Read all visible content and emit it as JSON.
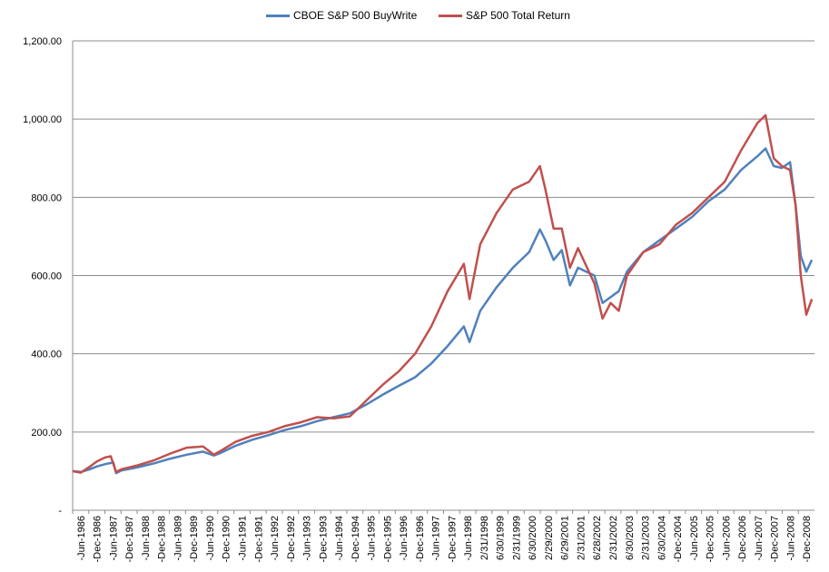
{
  "chart_data": {
    "type": "line",
    "title": "",
    "xlabel": "",
    "ylabel": "",
    "ylim": [
      0,
      1200
    ],
    "grid": true,
    "legend_position": "top",
    "y_ticks": [
      "-",
      "200.00",
      "400.00",
      "600.00",
      "800.00",
      "1,000.00",
      "1,200.00"
    ],
    "y_tick_values": [
      0,
      200,
      400,
      600,
      800,
      1000,
      1200
    ],
    "x_tick_labels": [
      "-Jun-1986",
      "-Dec-1986",
      "-Jun-1987",
      "-Dec-1987",
      "-Jun-1988",
      "-Dec-1988",
      "-Jun-1989",
      "-Dec-1989",
      "-Jun-1990",
      "-Dec-1990",
      "-Jun-1991",
      "-Dec-1991",
      "-Jun-1992",
      "-Dec-1992",
      "-Jun-1993",
      "-Dec-1993",
      "-Jun-1994",
      "-Dec-1994",
      "-Jun-1995",
      "-Dec-1995",
      "-Jun-1996",
      "-Dec-1996",
      "-Jun-1997",
      "-Dec-1997",
      "-Jun-1998",
      "2/31/1998",
      "6/30/1999",
      "2/31/1999",
      "6/30/2000",
      "2/29/2000",
      "6/29/2001",
      "2/31/2001",
      "6/28/2002",
      "2/31/2002",
      "6/30/2003",
      "2/31/2003",
      "6/30/2004",
      "-Dec-2004",
      "-Jun-2005",
      "-Dec-2005",
      "-Jun-2006",
      "-Dec-2006",
      "-Jun-2007",
      "-Dec-2007",
      "-Jun-2008",
      "-Dec-2008"
    ],
    "x_start": 1986.5,
    "x_end": 2009.25,
    "series": [
      {
        "name": "CBOE S&P 500 BuyWrite",
        "color": "#4F81BD",
        "points": [
          [
            1986.5,
            100
          ],
          [
            1986.75,
            98
          ],
          [
            1987.0,
            104
          ],
          [
            1987.25,
            112
          ],
          [
            1987.5,
            118
          ],
          [
            1987.75,
            122
          ],
          [
            1987.83,
            95
          ],
          [
            1988.0,
            102
          ],
          [
            1988.5,
            110
          ],
          [
            1989.0,
            120
          ],
          [
            1989.5,
            132
          ],
          [
            1990.0,
            142
          ],
          [
            1990.5,
            150
          ],
          [
            1990.83,
            140
          ],
          [
            1991.0,
            145
          ],
          [
            1991.5,
            165
          ],
          [
            1992.0,
            180
          ],
          [
            1992.5,
            192
          ],
          [
            1993.0,
            205
          ],
          [
            1993.5,
            215
          ],
          [
            1994.0,
            228
          ],
          [
            1994.5,
            238
          ],
          [
            1995.0,
            248
          ],
          [
            1995.5,
            270
          ],
          [
            1996.0,
            295
          ],
          [
            1996.5,
            318
          ],
          [
            1997.0,
            340
          ],
          [
            1997.5,
            375
          ],
          [
            1998.0,
            420
          ],
          [
            1998.5,
            470
          ],
          [
            1998.67,
            430
          ],
          [
            1999.0,
            510
          ],
          [
            1999.5,
            570
          ],
          [
            2000.0,
            620
          ],
          [
            2000.5,
            660
          ],
          [
            2000.83,
            718
          ],
          [
            2001.0,
            690
          ],
          [
            2001.25,
            640
          ],
          [
            2001.5,
            665
          ],
          [
            2001.75,
            575
          ],
          [
            2002.0,
            620
          ],
          [
            2002.5,
            600
          ],
          [
            2002.75,
            530
          ],
          [
            2003.0,
            545
          ],
          [
            2003.25,
            560
          ],
          [
            2003.5,
            610
          ],
          [
            2004.0,
            660
          ],
          [
            2004.5,
            690
          ],
          [
            2005.0,
            720
          ],
          [
            2005.5,
            750
          ],
          [
            2006.0,
            790
          ],
          [
            2006.5,
            820
          ],
          [
            2007.0,
            870
          ],
          [
            2007.5,
            905
          ],
          [
            2007.75,
            925
          ],
          [
            2008.0,
            880
          ],
          [
            2008.25,
            875
          ],
          [
            2008.5,
            890
          ],
          [
            2008.67,
            780
          ],
          [
            2008.83,
            650
          ],
          [
            2009.0,
            610
          ],
          [
            2009.17,
            640
          ]
        ]
      },
      {
        "name": "S&P 500 Total  Return",
        "color": "#C0504D",
        "points": [
          [
            1986.5,
            100
          ],
          [
            1986.75,
            96
          ],
          [
            1987.0,
            110
          ],
          [
            1987.25,
            125
          ],
          [
            1987.5,
            135
          ],
          [
            1987.67,
            138
          ],
          [
            1987.83,
            98
          ],
          [
            1988.0,
            105
          ],
          [
            1988.5,
            115
          ],
          [
            1989.0,
            128
          ],
          [
            1989.5,
            145
          ],
          [
            1990.0,
            160
          ],
          [
            1990.5,
            163
          ],
          [
            1990.83,
            142
          ],
          [
            1991.0,
            150
          ],
          [
            1991.5,
            175
          ],
          [
            1992.0,
            190
          ],
          [
            1992.5,
            200
          ],
          [
            1993.0,
            215
          ],
          [
            1993.5,
            225
          ],
          [
            1994.0,
            238
          ],
          [
            1994.5,
            235
          ],
          [
            1995.0,
            240
          ],
          [
            1995.5,
            280
          ],
          [
            1996.0,
            320
          ],
          [
            1996.5,
            355
          ],
          [
            1997.0,
            400
          ],
          [
            1997.5,
            470
          ],
          [
            1998.0,
            560
          ],
          [
            1998.5,
            630
          ],
          [
            1998.67,
            540
          ],
          [
            1999.0,
            680
          ],
          [
            1999.5,
            760
          ],
          [
            2000.0,
            820
          ],
          [
            2000.5,
            840
          ],
          [
            2000.83,
            880
          ],
          [
            2001.0,
            820
          ],
          [
            2001.25,
            720
          ],
          [
            2001.5,
            720
          ],
          [
            2001.75,
            620
          ],
          [
            2002.0,
            670
          ],
          [
            2002.5,
            580
          ],
          [
            2002.75,
            490
          ],
          [
            2003.0,
            530
          ],
          [
            2003.25,
            510
          ],
          [
            2003.5,
            600
          ],
          [
            2004.0,
            660
          ],
          [
            2004.5,
            680
          ],
          [
            2005.0,
            730
          ],
          [
            2005.5,
            760
          ],
          [
            2006.0,
            800
          ],
          [
            2006.5,
            840
          ],
          [
            2007.0,
            920
          ],
          [
            2007.5,
            990
          ],
          [
            2007.75,
            1010
          ],
          [
            2008.0,
            900
          ],
          [
            2008.25,
            880
          ],
          [
            2008.5,
            870
          ],
          [
            2008.67,
            780
          ],
          [
            2008.83,
            600
          ],
          [
            2009.0,
            500
          ],
          [
            2009.17,
            540
          ]
        ]
      }
    ]
  }
}
